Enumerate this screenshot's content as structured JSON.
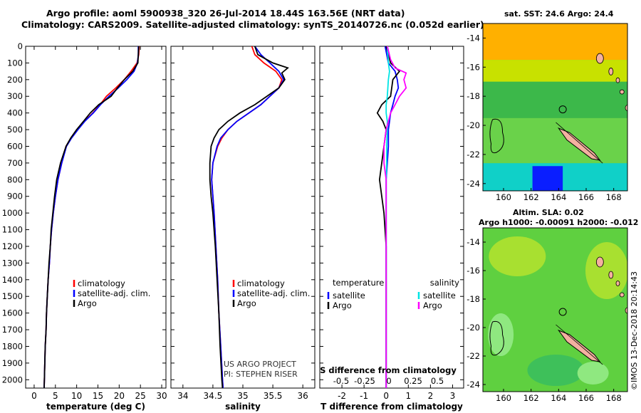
{
  "title_line1": "Argo profile: aoml 5900938_320 26-Jul-2014 18.44S 163.56E (NRT data)",
  "title_line2": "Climatology: CARS2009. Satellite-adjusted climatology: synTS_20140726.nc (0.052d earlier)",
  "map1_title": "sat. SST: 24.6 Argo: 24.4",
  "map2_title_line1": "Altim. SLA: 0.02",
  "map2_title_line2": "Argo h1000: -0.00091 h2000: -0.012",
  "watermark": "©IMOS 13-Dec-2018 20:14:43",
  "colors": {
    "climatology": "#ff0000",
    "satellite": "#0000ff",
    "argo": "#000000",
    "sat_salinity": "#00e5e5",
    "argo_salinity": "#ff00ff"
  },
  "chart_data": [
    {
      "type": "line",
      "xlabel": "temperature (deg C)",
      "ylabel": "",
      "xlim": [
        -2,
        31
      ],
      "ylim": [
        2050,
        0
      ],
      "x_ticks": [
        0,
        5,
        10,
        15,
        20,
        25,
        30
      ],
      "y_ticks": [
        0,
        100,
        200,
        300,
        400,
        500,
        600,
        700,
        800,
        900,
        1000,
        1100,
        1200,
        1300,
        1400,
        1500,
        1600,
        1700,
        1800,
        1900,
        2000
      ],
      "legend": [
        "climatology",
        "satellite-adj. clim.",
        "Argo"
      ],
      "legend_position": "lower-right",
      "series": [
        {
          "name": "climatology",
          "points": [
            [
              24.7,
              0
            ],
            [
              24.6,
              50
            ],
            [
              24.2,
              100
            ],
            [
              22.8,
              150
            ],
            [
              21.2,
              200
            ],
            [
              19.2,
              250
            ],
            [
              17.0,
              300
            ],
            [
              15.5,
              350
            ],
            [
              13.8,
              400
            ],
            [
              11.8,
              450
            ],
            [
              10.2,
              500
            ],
            [
              8.7,
              550
            ],
            [
              7.5,
              600
            ],
            [
              6.5,
              700
            ],
            [
              5.6,
              800
            ],
            [
              5.0,
              900
            ],
            [
              4.5,
              1000
            ],
            [
              4.1,
              1100
            ],
            [
              3.8,
              1200
            ],
            [
              3.6,
              1300
            ],
            [
              3.3,
              1400
            ],
            [
              3.1,
              1500
            ],
            [
              2.9,
              1600
            ],
            [
              2.8,
              1700
            ],
            [
              2.6,
              1800
            ],
            [
              2.5,
              1900
            ],
            [
              2.4,
              2000
            ],
            [
              2.35,
              2050
            ]
          ]
        },
        {
          "name": "satellite-adj. clim.",
          "points": [
            [
              24.5,
              0
            ],
            [
              24.5,
              50
            ],
            [
              24.3,
              100
            ],
            [
              23.5,
              150
            ],
            [
              21.8,
              200
            ],
            [
              19.8,
              250
            ],
            [
              17.6,
              300
            ],
            [
              15.6,
              350
            ],
            [
              13.9,
              400
            ],
            [
              11.9,
              450
            ],
            [
              10.3,
              500
            ],
            [
              8.8,
              550
            ],
            [
              7.6,
              600
            ],
            [
              6.5,
              700
            ],
            [
              5.6,
              800
            ],
            [
              5.0,
              900
            ],
            [
              4.5,
              1000
            ],
            [
              4.1,
              1100
            ],
            [
              3.8,
              1200
            ],
            [
              3.6,
              1300
            ],
            [
              3.3,
              1400
            ],
            [
              3.1,
              1500
            ],
            [
              2.9,
              1600
            ],
            [
              2.8,
              1700
            ],
            [
              2.6,
              1800
            ],
            [
              2.5,
              1900
            ],
            [
              2.4,
              2000
            ],
            [
              2.35,
              2050
            ]
          ]
        },
        {
          "name": "Argo",
          "points": [
            [
              24.6,
              0
            ],
            [
              24.5,
              50
            ],
            [
              24.4,
              100
            ],
            [
              23.2,
              150
            ],
            [
              21.2,
              200
            ],
            [
              19.6,
              250
            ],
            [
              18.1,
              300
            ],
            [
              15.2,
              350
            ],
            [
              13.2,
              400
            ],
            [
              11.6,
              450
            ],
            [
              10.0,
              500
            ],
            [
              8.6,
              550
            ],
            [
              7.5,
              600
            ],
            [
              6.2,
              700
            ],
            [
              5.3,
              800
            ],
            [
              4.8,
              900
            ],
            [
              4.4,
              1000
            ],
            [
              4.0,
              1100
            ],
            [
              3.8,
              1200
            ],
            [
              3.5,
              1300
            ],
            [
              3.3,
              1400
            ],
            [
              3.1,
              1500
            ],
            [
              2.9,
              1600
            ],
            [
              2.8,
              1700
            ],
            [
              2.6,
              1800
            ],
            [
              2.5,
              1900
            ],
            [
              2.4,
              2000
            ],
            [
              2.35,
              2050
            ]
          ]
        }
      ]
    },
    {
      "type": "line",
      "xlabel": "salinity",
      "ylabel": "",
      "xlim": [
        33.8,
        36.2
      ],
      "ylim": [
        2050,
        0
      ],
      "x_ticks": [
        34,
        34.5,
        35,
        35.5,
        36
      ],
      "legend": [
        "climatology",
        "satellite-adj. clim.",
        "Argo"
      ],
      "legend_position": "lower-right",
      "annotation": [
        "US ARGO PROJECT",
        "PI: STEPHEN RISER"
      ],
      "series": [
        {
          "name": "climatology",
          "points": [
            [
              35.15,
              0
            ],
            [
              35.2,
              50
            ],
            [
              35.35,
              100
            ],
            [
              35.55,
              150
            ],
            [
              35.65,
              200
            ],
            [
              35.6,
              250
            ],
            [
              35.45,
              300
            ],
            [
              35.3,
              350
            ],
            [
              35.1,
              400
            ],
            [
              34.9,
              450
            ],
            [
              34.75,
              500
            ],
            [
              34.65,
              550
            ],
            [
              34.58,
              600
            ],
            [
              34.5,
              700
            ],
            [
              34.48,
              800
            ],
            [
              34.5,
              900
            ],
            [
              34.52,
              1000
            ],
            [
              34.55,
              1200
            ],
            [
              34.58,
              1400
            ],
            [
              34.6,
              1600
            ],
            [
              34.63,
              1800
            ],
            [
              34.66,
              2000
            ],
            [
              34.67,
              2050
            ]
          ]
        },
        {
          "name": "satellite-adj. clim.",
          "points": [
            [
              35.2,
              0
            ],
            [
              35.3,
              50
            ],
            [
              35.45,
              100
            ],
            [
              35.6,
              150
            ],
            [
              35.68,
              200
            ],
            [
              35.6,
              250
            ],
            [
              35.45,
              300
            ],
            [
              35.3,
              350
            ],
            [
              35.1,
              400
            ],
            [
              34.9,
              450
            ],
            [
              34.75,
              500
            ],
            [
              34.63,
              550
            ],
            [
              34.57,
              600
            ],
            [
              34.5,
              700
            ],
            [
              34.48,
              800
            ],
            [
              34.5,
              900
            ],
            [
              34.52,
              1000
            ],
            [
              34.55,
              1200
            ],
            [
              34.58,
              1400
            ],
            [
              34.6,
              1600
            ],
            [
              34.63,
              1800
            ],
            [
              34.66,
              2000
            ],
            [
              34.67,
              2050
            ]
          ]
        },
        {
          "name": "Argo",
          "points": [
            [
              35.2,
              0
            ],
            [
              35.25,
              50
            ],
            [
              35.5,
              100
            ],
            [
              35.75,
              130
            ],
            [
              35.65,
              160
            ],
            [
              35.7,
              200
            ],
            [
              35.6,
              250
            ],
            [
              35.4,
              300
            ],
            [
              35.2,
              350
            ],
            [
              34.95,
              400
            ],
            [
              34.75,
              450
            ],
            [
              34.6,
              500
            ],
            [
              34.52,
              550
            ],
            [
              34.47,
              600
            ],
            [
              34.45,
              700
            ],
            [
              34.45,
              800
            ],
            [
              34.47,
              900
            ],
            [
              34.5,
              1000
            ],
            [
              34.54,
              1200
            ],
            [
              34.57,
              1400
            ],
            [
              34.6,
              1600
            ],
            [
              34.62,
              1800
            ],
            [
              34.65,
              2000
            ],
            [
              34.66,
              2050
            ]
          ]
        }
      ]
    },
    {
      "type": "line",
      "xlabel": "T difference from climatology",
      "ylabel": "",
      "xlim": [
        -3,
        3.5
      ],
      "ylim": [
        2050,
        0
      ],
      "x_ticks": [
        -2,
        -1,
        0,
        1,
        2,
        3
      ],
      "secondary_x_label": "S difference from climatology",
      "secondary_x_ticks": [
        "-0.5",
        "-0.25",
        "0",
        "0.25",
        "0.5"
      ],
      "legend": [
        "temperature",
        "satellite",
        "Argo",
        "salinity",
        "satellite",
        "Argo"
      ],
      "legend_position": "lower-center",
      "series": [
        {
          "name": "temperature satellite",
          "points": [
            [
              -0.05,
              0
            ],
            [
              0.1,
              100
            ],
            [
              0.4,
              150
            ],
            [
              0.5,
              200
            ],
            [
              0.55,
              250
            ],
            [
              0.4,
              300
            ],
            [
              0.3,
              350
            ],
            [
              0.2,
              400
            ],
            [
              0.15,
              450
            ],
            [
              0.1,
              500
            ],
            [
              0.1,
              600
            ],
            [
              0.05,
              700
            ],
            [
              0.0,
              800
            ],
            [
              0,
              1000
            ],
            [
              0,
              2050
            ]
          ]
        },
        {
          "name": "temperature Argo",
          "points": [
            [
              0,
              0
            ],
            [
              0.2,
              100
            ],
            [
              0.6,
              150
            ],
            [
              0.3,
              200
            ],
            [
              0.2,
              300
            ],
            [
              -0.2,
              350
            ],
            [
              -0.4,
              400
            ],
            [
              -0.15,
              450
            ],
            [
              0,
              500
            ],
            [
              -0.1,
              600
            ],
            [
              -0.2,
              700
            ],
            [
              -0.3,
              800
            ],
            [
              -0.2,
              900
            ],
            [
              -0.1,
              1000
            ],
            [
              0,
              1200
            ],
            [
              0,
              2050
            ]
          ]
        },
        {
          "name": "salinity satellite",
          "points": [
            [
              0.05,
              0
            ],
            [
              0.1,
              100
            ],
            [
              0.15,
              150
            ],
            [
              0.1,
              200
            ],
            [
              0.05,
              300
            ],
            [
              0,
              350
            ],
            [
              0,
              400
            ],
            [
              0.05,
              450
            ],
            [
              0.05,
              500
            ],
            [
              0.02,
              600
            ],
            [
              0.02,
              700
            ],
            [
              0,
              800
            ],
            [
              0,
              1000
            ],
            [
              0,
              2050
            ]
          ]
        },
        {
          "name": "salinity Argo",
          "points": [
            [
              0.05,
              0
            ],
            [
              0.2,
              80
            ],
            [
              0.4,
              130
            ],
            [
              0.9,
              160
            ],
            [
              0.8,
              200
            ],
            [
              0.9,
              250
            ],
            [
              0.6,
              300
            ],
            [
              0.4,
              350
            ],
            [
              0.2,
              400
            ],
            [
              0,
              500
            ],
            [
              -0.1,
              600
            ],
            [
              -0.1,
              700
            ],
            [
              0,
              800
            ],
            [
              0,
              1000
            ],
            [
              0,
              2050
            ]
          ]
        }
      ]
    }
  ],
  "maps": [
    {
      "name": "SST map",
      "x_ticks": [
        "160",
        "162",
        "164",
        "166",
        "168"
      ],
      "y_ticks": [
        "-14",
        "-16",
        "-18",
        "-20",
        "-22",
        "-24"
      ],
      "colors": [
        "#ffb000",
        "#c8e100",
        "#6ad24a",
        "#3cb84a",
        "#10d0c8",
        "#0a1eff"
      ]
    },
    {
      "name": "SLA map",
      "x_ticks": [
        "160",
        "162",
        "164",
        "166",
        "168"
      ],
      "y_ticks": [
        "-14",
        "-16",
        "-18",
        "-20",
        "-22",
        "-24"
      ],
      "colors": [
        "#5fd040",
        "#a8e030",
        "#3ec05a",
        "#8fe880"
      ]
    }
  ]
}
